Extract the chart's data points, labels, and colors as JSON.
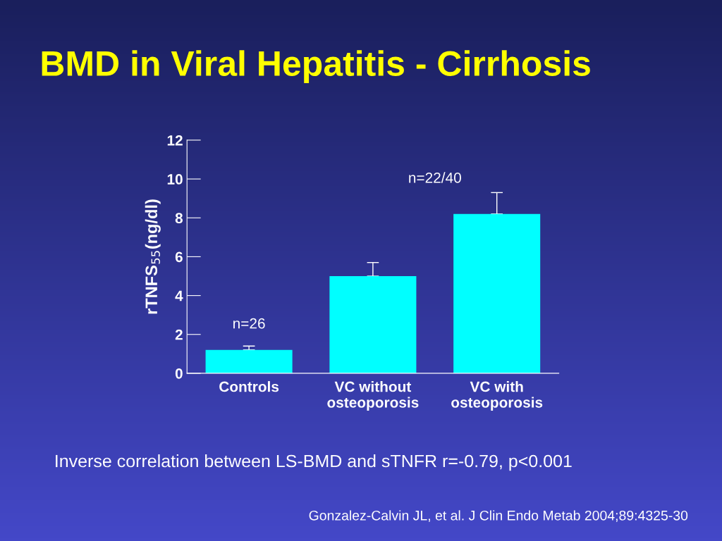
{
  "chart_data": {
    "type": "bar",
    "title": "BMD in Viral Hepatitis - Cirrhosis",
    "ylabel": "rTNFS$_{55}$(ng/dl)",
    "categories": [
      "Controls",
      "VC without\nosteoporosis",
      "VC with\nosteoporosis"
    ],
    "values": [
      1.2,
      5.0,
      8.2
    ],
    "errors": [
      0.2,
      0.7,
      1.1
    ],
    "color": "#00ffff",
    "ylim": [
      0,
      12
    ],
    "yticks": [
      0,
      2,
      4,
      6,
      8,
      10,
      12
    ],
    "grid": false,
    "annotations": [
      "n=26",
      "n=22/40",
      "Inverse correlation between LS-BMD and sTNFR r=-0.79, p<0.001",
      "Gonzalez-Calvin JL, et al. J Clin Endo Metab 2004;89:4325-30"
    ]
  }
}
